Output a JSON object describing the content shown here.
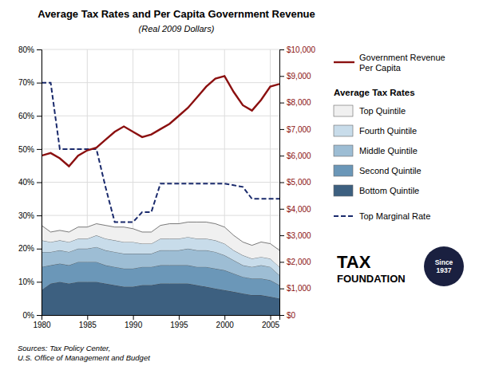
{
  "chart_data": {
    "type": "area",
    "title": "Average Tax Rates and Per Capita Government Revenue",
    "subtitle": "(Real 2009 Dollars)",
    "stacked": true,
    "grid": true,
    "legend": "right",
    "x": [
      1980,
      1981,
      1982,
      1983,
      1984,
      1985,
      1986,
      1987,
      1988,
      1989,
      1990,
      1991,
      1992,
      1993,
      1994,
      1995,
      1996,
      1997,
      1998,
      1999,
      2000,
      2001,
      2002,
      2003,
      2004,
      2005,
      2006
    ],
    "xlim": [
      1980,
      2006
    ],
    "xticks": [
      1980,
      1985,
      1990,
      1995,
      2000,
      2005
    ],
    "ylim": [
      0,
      80
    ],
    "yticks": [
      {
        "value": 0,
        "label": "0%"
      },
      {
        "value": 10,
        "label": "10%"
      },
      {
        "value": 20,
        "label": "20%"
      },
      {
        "value": 30,
        "label": "30%"
      },
      {
        "value": 40,
        "label": "40%"
      },
      {
        "value": 50,
        "label": "50%"
      },
      {
        "value": 60,
        "label": "60%"
      },
      {
        "value": 70,
        "label": "70%"
      },
      {
        "value": 80,
        "label": "80%"
      }
    ],
    "y2lim": [
      0,
      10000
    ],
    "y2ticks": [
      {
        "value": 0,
        "label": "$0"
      },
      {
        "value": 1000,
        "label": "$1,000"
      },
      {
        "value": 2000,
        "label": "$2,000"
      },
      {
        "value": 3000,
        "label": "$3,000"
      },
      {
        "value": 4000,
        "label": "$4,000"
      },
      {
        "value": 5000,
        "label": "$5,000"
      },
      {
        "value": 6000,
        "label": "$6,000"
      },
      {
        "value": 7000,
        "label": "$7,000"
      },
      {
        "value": 8000,
        "label": "$8,000"
      },
      {
        "value": 9000,
        "label": "$9,000"
      },
      {
        "value": 10000,
        "label": "$10,000"
      }
    ],
    "series": [
      {
        "name": "Bottom Quintile",
        "type": "area",
        "color": "#3d6080",
        "values": [
          7.5,
          9.5,
          10.0,
          9.5,
          10.0,
          10.0,
          10.0,
          9.5,
          9.0,
          8.5,
          8.5,
          9.0,
          9.0,
          9.5,
          9.5,
          9.5,
          9.5,
          9.0,
          8.5,
          8.0,
          7.5,
          7.0,
          6.5,
          6.0,
          6.0,
          5.5,
          5.0
        ]
      },
      {
        "name": "Second Quintile",
        "type": "area",
        "color": "#6b97b8",
        "values": [
          7.0,
          5.5,
          5.5,
          5.5,
          6.0,
          6.0,
          6.0,
          5.5,
          5.5,
          5.5,
          5.5,
          5.5,
          5.5,
          5.5,
          5.5,
          5.5,
          5.5,
          5.5,
          6.0,
          6.0,
          6.0,
          5.5,
          5.0,
          5.0,
          5.0,
          5.0,
          4.0
        ]
      },
      {
        "name": "Middle Quintile",
        "type": "area",
        "color": "#9dbdd4",
        "values": [
          4.5,
          4.0,
          4.0,
          4.0,
          4.0,
          4.0,
          4.5,
          4.5,
          4.5,
          4.5,
          4.5,
          4.0,
          4.0,
          4.5,
          4.5,
          4.5,
          5.0,
          5.0,
          5.0,
          5.0,
          4.5,
          4.0,
          3.5,
          3.5,
          4.0,
          4.0,
          3.0
        ]
      },
      {
        "name": "Fourth Quintile",
        "type": "area",
        "color": "#c8dcea",
        "values": [
          3.5,
          3.0,
          3.0,
          3.0,
          3.0,
          3.0,
          3.5,
          3.5,
          3.5,
          3.5,
          3.5,
          3.0,
          3.0,
          3.5,
          3.5,
          3.5,
          3.5,
          3.5,
          3.5,
          3.5,
          3.5,
          3.0,
          3.0,
          2.5,
          2.5,
          2.5,
          2.5
        ]
      },
      {
        "name": "Top Quintile",
        "type": "area",
        "color": "#f0f0f0",
        "values": [
          4.5,
          3.0,
          3.0,
          3.0,
          3.5,
          3.5,
          3.5,
          4.0,
          4.0,
          4.5,
          4.0,
          3.5,
          3.5,
          4.0,
          4.5,
          4.5,
          4.5,
          5.0,
          5.0,
          5.0,
          5.0,
          4.5,
          4.0,
          4.0,
          4.5,
          4.5,
          5.0
        ]
      },
      {
        "name": "Top Marginal Rate",
        "type": "line",
        "line_style": "dashed",
        "color": "#1a2a6c",
        "values": [
          70,
          70,
          50,
          50,
          50,
          50,
          50,
          38.5,
          28,
          28,
          28,
          31,
          31,
          39.6,
          39.6,
          39.6,
          39.6,
          39.6,
          39.6,
          39.6,
          39.6,
          39.1,
          38.6,
          35,
          35,
          35,
          35
        ]
      },
      {
        "name": "Government Revenue\nPer Capita",
        "type": "line",
        "line_style": "solid",
        "axis": "y2",
        "color": "#8b1010",
        "values": [
          6000,
          6100,
          5900,
          5600,
          6000,
          6200,
          6300,
          6600,
          6900,
          7100,
          6900,
          6700,
          6800,
          7000,
          7200,
          7500,
          7800,
          8200,
          8600,
          8900,
          9000,
          8400,
          7900,
          7700,
          8100,
          8600,
          8700
        ]
      }
    ],
    "annotations": [
      "Average Tax Rates",
      "TAX",
      "FOUNDATION",
      "Since\n1937",
      "Sources: Tax Policy Center,\nU.S. Office of Management and Budget"
    ]
  }
}
